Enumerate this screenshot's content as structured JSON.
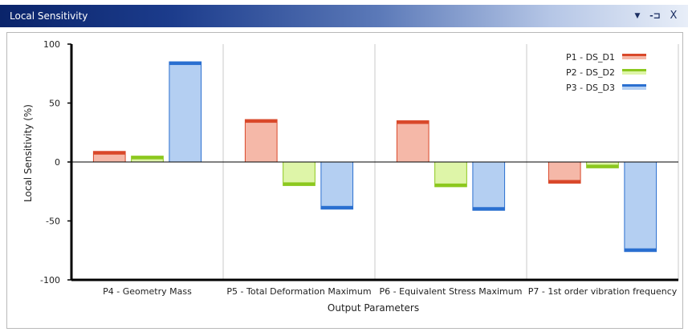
{
  "window": {
    "title": "Local Sensitivity",
    "controls": {
      "menu": "▼",
      "pin": "-⊐",
      "close": "X"
    }
  },
  "chart_data": {
    "type": "bar",
    "title": "",
    "xlabel": "Output Parameters",
    "ylabel": "Local Sensitivity (%)",
    "ylim": [
      -100,
      100
    ],
    "yticks": [
      100,
      50,
      0,
      -50,
      -100
    ],
    "grid": true,
    "legend_position": "top-right",
    "categories": [
      "P4 - Geometry Mass",
      "P5 - Total Deformation Maximum",
      "P6 - Equivalent Stress Maximum",
      "P7 - 1st order vibration frequency"
    ],
    "series": [
      {
        "name": "P1 - DS_D1",
        "fill": "#f5b8a8",
        "edge": "#d9482a",
        "values": [
          9,
          36,
          35,
          -18
        ]
      },
      {
        "name": "P2 - DS_D2",
        "fill": "#def5a8",
        "edge": "#8cc81e",
        "values": [
          5,
          -20,
          -21,
          -5
        ]
      },
      {
        "name": "P3 - DS_D3",
        "fill": "#b4cff2",
        "edge": "#2a6fd0",
        "values": [
          85,
          -40,
          -41,
          -76
        ]
      }
    ]
  }
}
